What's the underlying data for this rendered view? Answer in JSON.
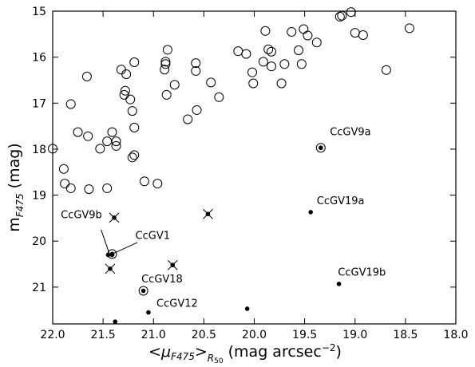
{
  "chart_data": {
    "type": "scatter",
    "xlabel_parts": {
      "pre": "<μ",
      "sub1": "F475",
      "mid": ">",
      "sub2": "R",
      "sub3": "50",
      "post": " (mag arcsec",
      "sup": "−2",
      "close": ")"
    },
    "ylabel_parts": {
      "pre": "m",
      "sub": "F475",
      "post": " (mag)"
    },
    "xlim": [
      22.0,
      18.0
    ],
    "ylim": [
      21.8,
      15.0
    ],
    "x_inverted": true,
    "y_inverted": true,
    "xticks": [
      22.0,
      21.5,
      21.0,
      20.5,
      20.0,
      19.5,
      19.0,
      18.5,
      18.0
    ],
    "xtick_labels": [
      "22.0",
      "21.5",
      "21.0",
      "20.5",
      "20.0",
      "19.5",
      "19.0",
      "18.5",
      "18.0"
    ],
    "yticks": [
      15,
      16,
      17,
      18,
      19,
      20,
      21
    ],
    "ytick_labels": [
      "15",
      "16",
      "17",
      "18",
      "19",
      "20",
      "21"
    ],
    "grid": false,
    "series": [
      {
        "marker": "open-circle",
        "points": [
          [
            21.66,
            16.42
          ],
          [
            21.82,
            17.02
          ],
          [
            21.75,
            17.63
          ],
          [
            21.65,
            17.72
          ],
          [
            21.53,
            17.99
          ],
          [
            21.46,
            17.83
          ],
          [
            21.37,
            17.83
          ],
          [
            21.37,
            17.93
          ],
          [
            21.41,
            17.63
          ],
          [
            21.32,
            16.27
          ],
          [
            21.27,
            16.37
          ],
          [
            21.28,
            16.73
          ],
          [
            21.29,
            16.82
          ],
          [
            21.23,
            16.92
          ],
          [
            21.21,
            17.17
          ],
          [
            21.19,
            17.53
          ],
          [
            21.19,
            16.11
          ],
          [
            21.19,
            18.13
          ],
          [
            21.21,
            18.18
          ],
          [
            21.09,
            18.7
          ],
          [
            20.96,
            18.75
          ],
          [
            21.46,
            18.85
          ],
          [
            21.64,
            18.87
          ],
          [
            21.82,
            18.85
          ],
          [
            21.88,
            18.75
          ],
          [
            21.89,
            18.43
          ],
          [
            22.0,
            17.99
          ],
          [
            20.86,
            15.84
          ],
          [
            20.88,
            16.1
          ],
          [
            20.88,
            16.15
          ],
          [
            20.89,
            16.27
          ],
          [
            20.87,
            16.82
          ],
          [
            20.79,
            16.6
          ],
          [
            20.66,
            17.35
          ],
          [
            20.58,
            16.13
          ],
          [
            20.58,
            16.3
          ],
          [
            20.57,
            17.15
          ],
          [
            20.43,
            16.55
          ],
          [
            20.35,
            16.87
          ],
          [
            20.16,
            15.87
          ],
          [
            20.08,
            15.93
          ],
          [
            20.02,
            16.33
          ],
          [
            20.01,
            16.57
          ],
          [
            19.91,
            16.1
          ],
          [
            19.89,
            15.43
          ],
          [
            19.86,
            15.83
          ],
          [
            19.83,
            15.88
          ],
          [
            19.83,
            16.2
          ],
          [
            19.73,
            16.57
          ],
          [
            19.7,
            16.15
          ],
          [
            19.63,
            15.45
          ],
          [
            19.56,
            15.85
          ],
          [
            19.53,
            16.15
          ],
          [
            19.51,
            15.39
          ],
          [
            19.47,
            15.53
          ],
          [
            19.38,
            15.68
          ],
          [
            19.15,
            15.12
          ],
          [
            19.13,
            15.1
          ],
          [
            19.04,
            15.02
          ],
          [
            19.0,
            15.47
          ],
          [
            18.92,
            15.52
          ],
          [
            18.69,
            16.28
          ],
          [
            18.46,
            15.37
          ]
        ]
      },
      {
        "marker": "filled-dot",
        "points": [
          [
            21.38,
            21.75
          ],
          [
            21.05,
            21.55
          ],
          [
            20.07,
            21.47
          ],
          [
            19.44,
            19.37
          ],
          [
            19.16,
            20.93
          ],
          [
            21.45,
            20.3
          ],
          [
            21.41,
            20.3
          ]
        ]
      },
      {
        "marker": "dot-in-circle",
        "points": [
          [
            19.34,
            17.97
          ],
          [
            21.1,
            21.08
          ],
          [
            21.41,
            20.28
          ]
        ]
      },
      {
        "marker": "dot-with-x",
        "points": [
          [
            21.39,
            19.49
          ],
          [
            20.46,
            19.41
          ],
          [
            20.81,
            20.52
          ],
          [
            21.43,
            20.6
          ]
        ]
      }
    ],
    "annotations": [
      {
        "text": "CcGV9a",
        "x": 19.25,
        "y": 17.7,
        "anchor": "start"
      },
      {
        "text": "CcGV19a",
        "x": 19.38,
        "y": 19.2,
        "anchor": "start"
      },
      {
        "text": "CcGV9b",
        "x": 21.92,
        "y": 19.5,
        "anchor": "start"
      },
      {
        "text": "CcGV1",
        "x": 21.18,
        "y": 19.95,
        "anchor": "start"
      },
      {
        "text": "CcGV18",
        "x": 21.12,
        "y": 20.9,
        "anchor": "start"
      },
      {
        "text": "CcGV12",
        "x": 20.97,
        "y": 21.43,
        "anchor": "start"
      },
      {
        "text": "CcGV19b",
        "x": 19.17,
        "y": 20.75,
        "anchor": "start"
      }
    ],
    "leader_lines": [
      [
        [
          21.52,
          19.75
        ],
        [
          21.44,
          20.26
        ]
      ],
      [
        [
          21.16,
          20.03
        ],
        [
          21.4,
          20.27
        ]
      ]
    ]
  }
}
